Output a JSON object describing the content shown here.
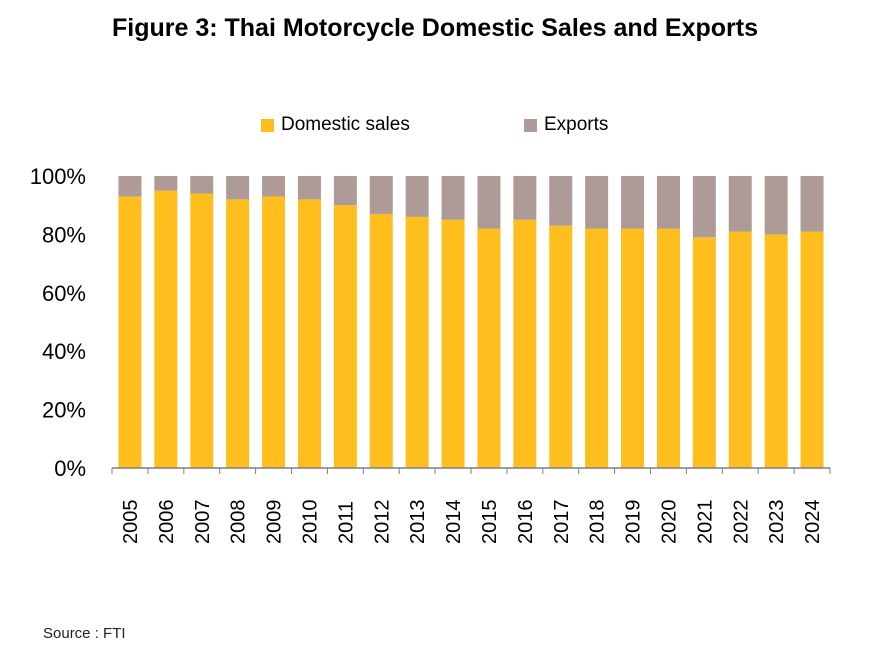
{
  "title": "Figure 3: Thai Motorcycle Domestic Sales and Exports",
  "source": "Source : FTI",
  "colors": {
    "domestic": "#FDBE1E",
    "exports": "#AE9A97",
    "axis": "#7f7f7f"
  },
  "chart_data": {
    "type": "bar",
    "stacked": true,
    "percent_stacked": true,
    "categories": [
      "2005",
      "2006",
      "2007",
      "2008",
      "2009",
      "2010",
      "2011",
      "2012",
      "2013",
      "2014",
      "2015",
      "2016",
      "2017",
      "2018",
      "2019",
      "2020",
      "2021",
      "2022",
      "2023",
      "2024"
    ],
    "series": [
      {
        "name": "Domestic sales",
        "values": [
          93,
          95,
          94,
          92,
          93,
          92,
          90,
          87,
          86,
          85,
          82,
          85,
          83,
          82,
          82,
          82,
          79,
          81,
          80,
          81
        ]
      },
      {
        "name": "Exports",
        "values": [
          7,
          5,
          6,
          8,
          7,
          8,
          10,
          13,
          14,
          15,
          18,
          15,
          17,
          18,
          18,
          18,
          21,
          19,
          20,
          19
        ]
      }
    ],
    "ylim": [
      0,
      100
    ],
    "yticks": [
      "0%",
      "20%",
      "40%",
      "60%",
      "80%",
      "100%"
    ],
    "grid": false,
    "legend_position": "top"
  }
}
